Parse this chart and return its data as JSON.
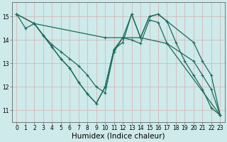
{
  "xlabel": "Humidex (Indice chaleur)",
  "bg_color": "#ceeaea",
  "grid_color": "#c0d8d8",
  "line_color": "#1a6b5a",
  "markersize": 3,
  "linewidth": 0.9,
  "series": [
    {
      "x": [
        0,
        1,
        2,
        3,
        4,
        5,
        6,
        7,
        8,
        9,
        10,
        11,
        12,
        13,
        14,
        15,
        16,
        17,
        20,
        21,
        22,
        23
      ],
      "y": [
        15.1,
        14.5,
        14.7,
        14.2,
        13.8,
        13.5,
        13.2,
        12.9,
        12.5,
        12.0,
        11.75,
        13.5,
        14.1,
        15.1,
        14.1,
        15.0,
        15.1,
        14.8,
        13.9,
        13.1,
        12.5,
        10.8
      ]
    },
    {
      "x": [
        0,
        2,
        3,
        4,
        5,
        6,
        7,
        8,
        9,
        10,
        11,
        12,
        13,
        14,
        15,
        16,
        17,
        18,
        19,
        20,
        21,
        22,
        23
      ],
      "y": [
        15.1,
        14.7,
        14.2,
        13.7,
        13.2,
        12.8,
        12.2,
        11.7,
        11.3,
        12.0,
        13.6,
        13.9,
        15.1,
        14.1,
        15.0,
        15.1,
        14.8,
        13.9,
        13.1,
        12.5,
        11.9,
        11.1,
        10.8
      ]
    },
    {
      "x": [
        0,
        2,
        10,
        14,
        17,
        23
      ],
      "y": [
        15.1,
        14.7,
        14.1,
        14.1,
        13.85,
        10.8
      ]
    },
    {
      "x": [
        2,
        3,
        4,
        5,
        6,
        7,
        8,
        9,
        10,
        11,
        12,
        13,
        14,
        15,
        16,
        17,
        20,
        21,
        22,
        23
      ],
      "y": [
        14.7,
        14.2,
        13.7,
        13.2,
        12.8,
        12.2,
        11.7,
        11.3,
        12.0,
        13.6,
        14.1,
        14.0,
        13.85,
        14.85,
        14.75,
        13.85,
        13.1,
        12.5,
        11.9,
        10.8
      ]
    }
  ],
  "xlim": [
    -0.5,
    23.5
  ],
  "ylim": [
    10.5,
    15.6
  ],
  "yticks": [
    11,
    12,
    13,
    14,
    15
  ],
  "xticks": [
    0,
    1,
    2,
    3,
    4,
    5,
    6,
    7,
    8,
    9,
    10,
    11,
    12,
    13,
    14,
    15,
    16,
    17,
    18,
    19,
    20,
    21,
    22,
    23
  ],
  "tick_fontsize": 5.5,
  "xlabel_fontsize": 7.5
}
